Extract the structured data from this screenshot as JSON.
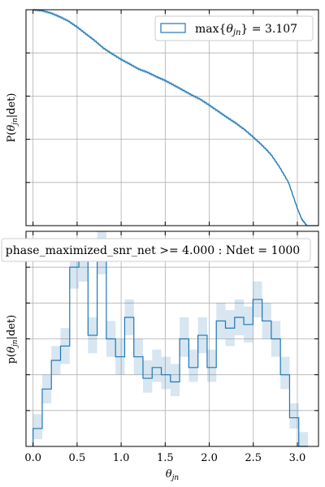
{
  "chart_data": [
    {
      "type": "line",
      "panel": "top",
      "ylabel": "P(θ_jn|det)",
      "xlim": [
        -0.08,
        3.24
      ],
      "ylim": [
        0,
        1
      ],
      "grid": true,
      "legend": {
        "placement": "top-right",
        "entries": [
          {
            "label": "max{θ_jn} = 3.107",
            "color": "#1f77b4"
          }
        ]
      },
      "series": [
        {
          "x": [
            0.0,
            0.1,
            0.2,
            0.3,
            0.4,
            0.5,
            0.6,
            0.7,
            0.8,
            0.9,
            1.0,
            1.1,
            1.2,
            1.3,
            1.4,
            1.5,
            1.6,
            1.7,
            1.8,
            1.9,
            2.0,
            2.1,
            2.2,
            2.3,
            2.4,
            2.5,
            2.6,
            2.7,
            2.8,
            2.9,
            3.0,
            3.05,
            3.107
          ],
          "y": [
            1.0,
            0.996,
            0.985,
            0.968,
            0.948,
            0.92,
            0.888,
            0.857,
            0.822,
            0.795,
            0.77,
            0.748,
            0.725,
            0.71,
            0.69,
            0.672,
            0.65,
            0.628,
            0.605,
            0.585,
            0.558,
            0.53,
            0.502,
            0.475,
            0.445,
            0.41,
            0.372,
            0.33,
            0.27,
            0.2,
            0.08,
            0.03,
            0.0
          ]
        }
      ]
    },
    {
      "type": "bar",
      "panel": "bottom",
      "title": "phase_maximized_snr_net >= 4.000 : Ndet = 1000",
      "xlabel": "θ_jn",
      "ylabel": "p(θ_jn|det)",
      "xlim": [
        -0.08,
        3.24
      ],
      "xticks": [
        "0.0",
        "0.5",
        "1.0",
        "1.5",
        "2.0",
        "2.5",
        "3.0"
      ],
      "ylim": [
        0,
        0.6
      ],
      "grid": true,
      "bin_edges": [
        0.0,
        0.104,
        0.208,
        0.312,
        0.416,
        0.52,
        0.624,
        0.728,
        0.832,
        0.936,
        1.04,
        1.144,
        1.248,
        1.352,
        1.456,
        1.56,
        1.664,
        1.768,
        1.872,
        1.976,
        2.08,
        2.184,
        2.288,
        2.392,
        2.496,
        2.6,
        2.704,
        2.808,
        2.912,
        3.016,
        3.12
      ],
      "values": [
        0.05,
        0.16,
        0.24,
        0.28,
        0.5,
        0.52,
        0.31,
        0.54,
        0.3,
        0.25,
        0.36,
        0.25,
        0.19,
        0.22,
        0.2,
        0.18,
        0.3,
        0.22,
        0.31,
        0.22,
        0.35,
        0.33,
        0.36,
        0.34,
        0.41,
        0.35,
        0.3,
        0.2,
        0.08,
        0.0
      ],
      "error_low": [
        0.02,
        0.12,
        0.2,
        0.23,
        0.44,
        0.46,
        0.26,
        0.48,
        0.25,
        0.2,
        0.31,
        0.2,
        0.15,
        0.18,
        0.16,
        0.14,
        0.25,
        0.18,
        0.26,
        0.18,
        0.3,
        0.28,
        0.31,
        0.29,
        0.36,
        0.3,
        0.25,
        0.16,
        0.05,
        0.0
      ],
      "error_high": [
        0.09,
        0.2,
        0.28,
        0.33,
        0.56,
        0.58,
        0.36,
        0.6,
        0.35,
        0.3,
        0.41,
        0.3,
        0.24,
        0.27,
        0.25,
        0.23,
        0.36,
        0.27,
        0.36,
        0.27,
        0.4,
        0.38,
        0.41,
        0.39,
        0.46,
        0.4,
        0.35,
        0.25,
        0.12,
        0.04
      ]
    }
  ]
}
